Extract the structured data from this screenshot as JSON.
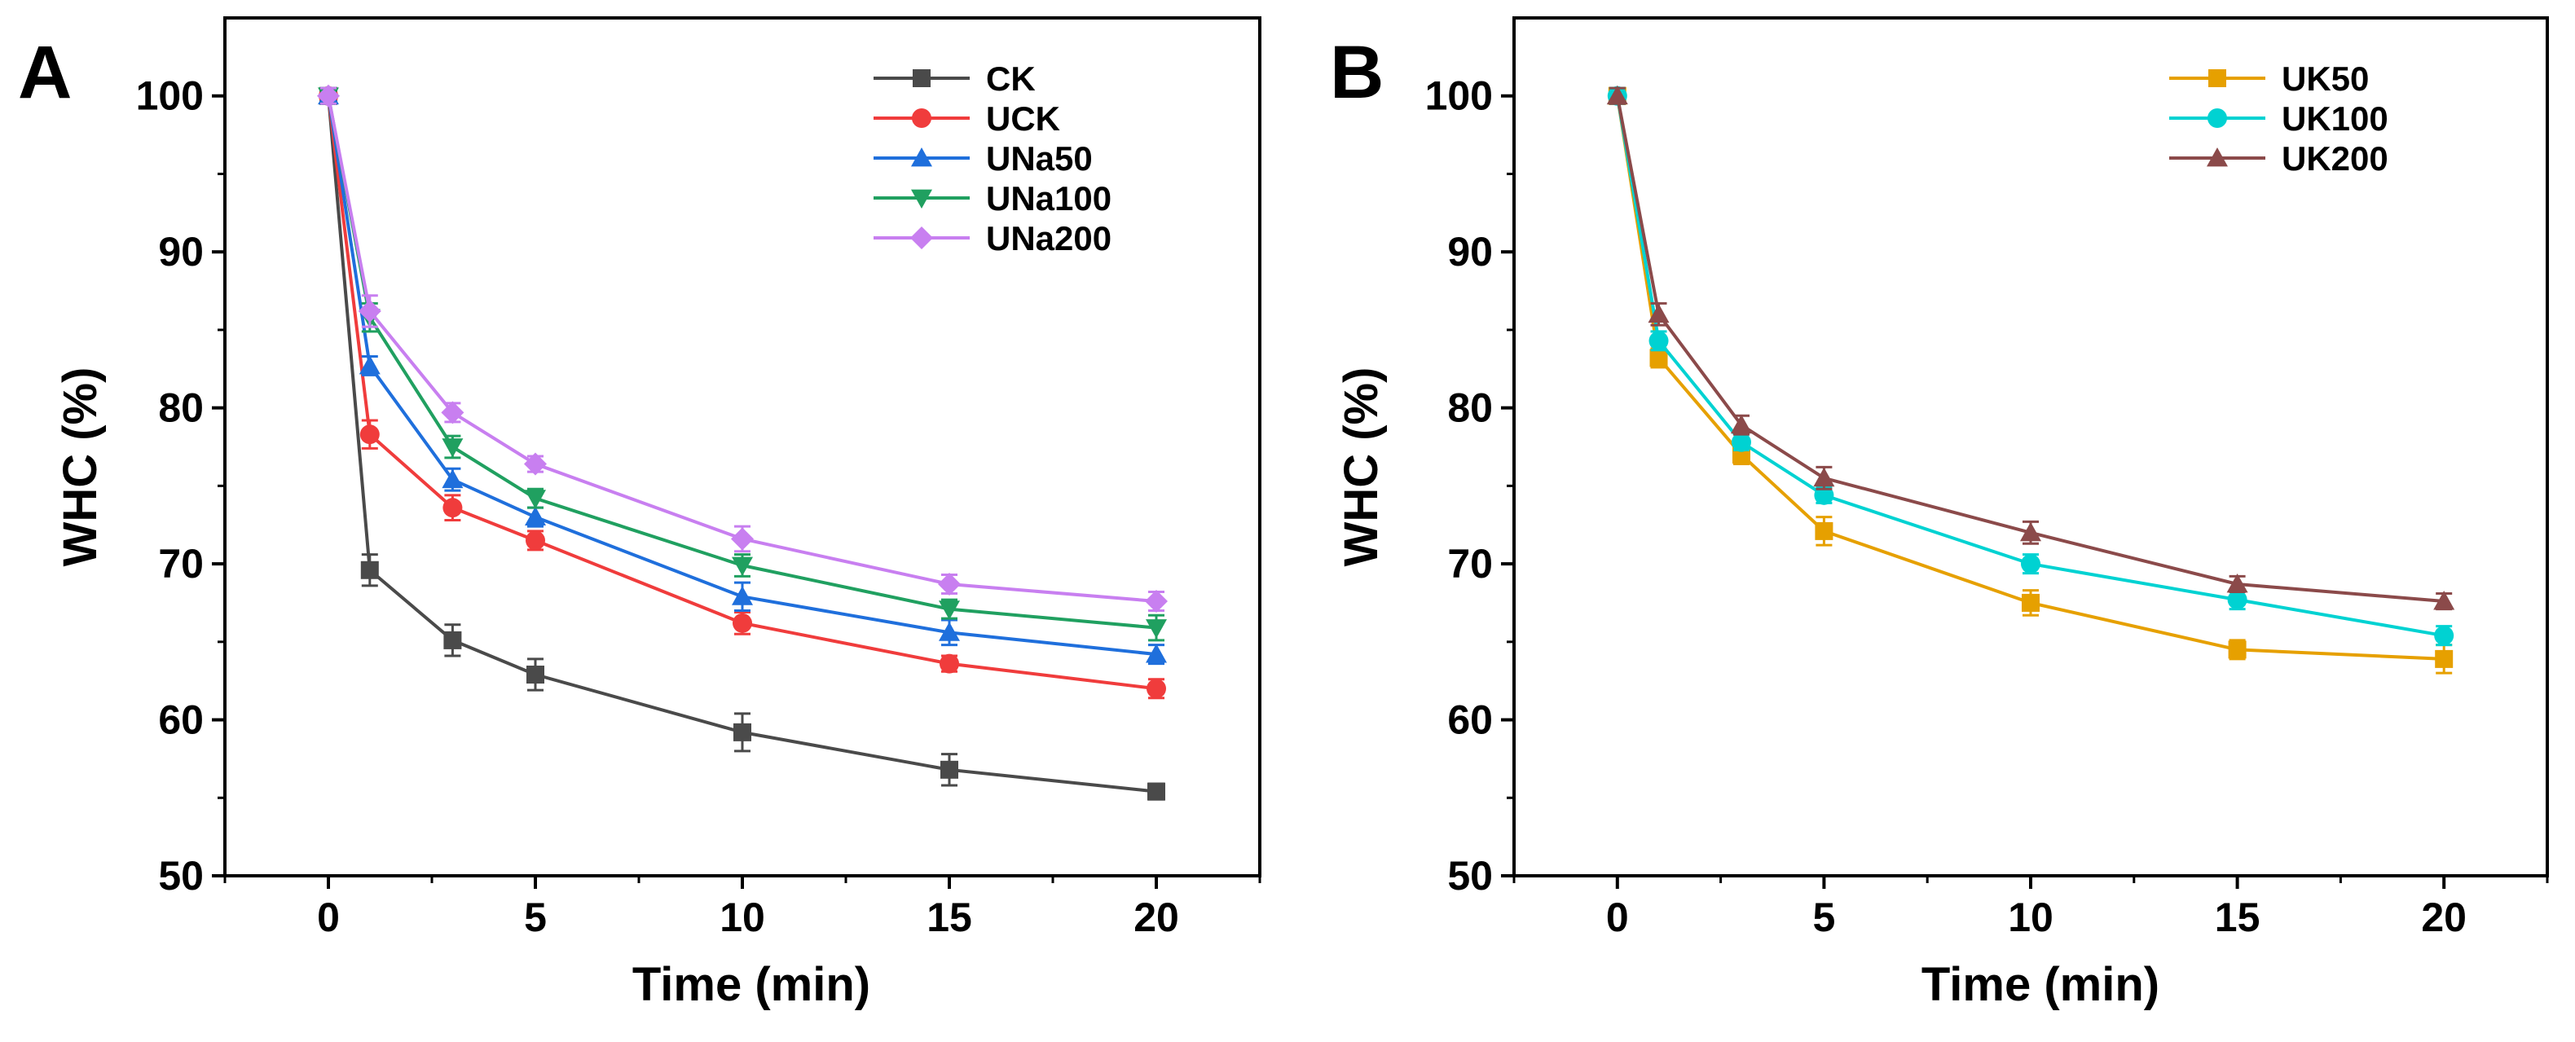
{
  "chart_data": [
    {
      "type": "line",
      "panel_label": "A",
      "xlabel": "Time (min)",
      "ylabel": "WHC (%)",
      "xlim": [
        -2.5,
        22.5
      ],
      "ylim": [
        50,
        105
      ],
      "xticks": [
        0,
        5,
        10,
        15,
        20
      ],
      "yticks": [
        50,
        60,
        70,
        80,
        90,
        100
      ],
      "legend_position": "top-right",
      "x": [
        0,
        1,
        3,
        5,
        10,
        15,
        20
      ],
      "series": [
        {
          "name": "CK",
          "color": "#4a4a4a",
          "marker": "square",
          "values": [
            100,
            69.6,
            65.1,
            62.9,
            59.2,
            56.8,
            55.4
          ],
          "errors": [
            0.5,
            1.0,
            1.0,
            1.0,
            1.2,
            1.0,
            0.5
          ]
        },
        {
          "name": "UCK",
          "color": "#f03c3c",
          "marker": "circle",
          "values": [
            100,
            78.3,
            73.6,
            71.5,
            66.2,
            63.6,
            62.0
          ],
          "errors": [
            0.5,
            0.9,
            0.8,
            0.6,
            0.7,
            0.5,
            0.6
          ]
        },
        {
          "name": "UNa50",
          "color": "#1f6fdc",
          "marker": "triangle-up",
          "values": [
            100,
            82.7,
            75.4,
            73.0,
            67.9,
            65.6,
            64.2
          ],
          "errors": [
            0.5,
            0.6,
            0.7,
            0.6,
            0.9,
            0.8,
            0.6
          ]
        },
        {
          "name": "UNa100",
          "color": "#20a060",
          "marker": "triangle-down",
          "values": [
            100,
            85.8,
            77.5,
            74.2,
            69.9,
            67.1,
            65.9
          ],
          "errors": [
            0.5,
            0.9,
            0.7,
            0.6,
            0.7,
            0.6,
            0.8
          ]
        },
        {
          "name": "UNa200",
          "color": "#c87ff0",
          "marker": "diamond",
          "values": [
            100,
            86.2,
            79.7,
            76.4,
            71.6,
            68.7,
            67.6
          ],
          "errors": [
            0.5,
            1.0,
            0.6,
            0.5,
            0.8,
            0.6,
            0.6
          ]
        }
      ]
    },
    {
      "type": "line",
      "panel_label": "B",
      "xlabel": "Time (min)",
      "ylabel": "WHC (%)",
      "xlim": [
        -2.5,
        22.5
      ],
      "ylim": [
        50,
        105
      ],
      "xticks": [
        0,
        5,
        10,
        15,
        20
      ],
      "yticks": [
        50,
        60,
        70,
        80,
        90,
        100
      ],
      "legend_position": "top-right",
      "x": [
        0,
        1,
        3,
        5,
        10,
        15,
        20
      ],
      "series": [
        {
          "name": "UK50",
          "color": "#e6a000",
          "marker": "square",
          "values": [
            100,
            83.2,
            77.0,
            72.1,
            67.5,
            64.5,
            63.9
          ],
          "errors": [
            0.5,
            0.6,
            0.6,
            0.9,
            0.8,
            0.6,
            0.9
          ]
        },
        {
          "name": "UK100",
          "color": "#00d2d2",
          "marker": "circle",
          "values": [
            100,
            84.3,
            77.8,
            74.4,
            70.0,
            67.7,
            65.4
          ],
          "errors": [
            0.5,
            0.6,
            0.5,
            0.5,
            0.6,
            0.6,
            0.6
          ]
        },
        {
          "name": "UK200",
          "color": "#8b4a4a",
          "marker": "triangle-up",
          "values": [
            100,
            86.0,
            78.9,
            75.5,
            72.0,
            68.7,
            67.6
          ],
          "errors": [
            0.5,
            0.7,
            0.6,
            0.7,
            0.7,
            0.5,
            0.5
          ]
        }
      ]
    }
  ]
}
